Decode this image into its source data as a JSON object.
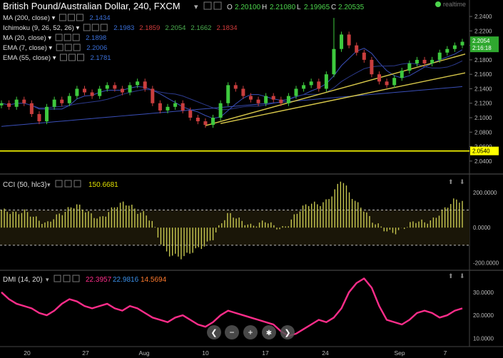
{
  "header": {
    "title": "British Pound/Australian Dollar, 240, FXCM",
    "ohlc": [
      {
        "label": "O",
        "value": "2.20100"
      },
      {
        "label": "H",
        "value": "2.21080"
      },
      {
        "label": "L",
        "value": "2.19965"
      },
      {
        "label": "C",
        "value": "2.20535"
      }
    ],
    "realtime_label": "realtime"
  },
  "indicators": [
    {
      "label": "MA (200, close)",
      "values": [
        {
          "v": "2.1434",
          "color": "#3a6fd8"
        }
      ]
    },
    {
      "label": "Ichimoku (9, 26, 52, 26)",
      "values": [
        {
          "v": "2.1983",
          "color": "#3a6fd8"
        },
        {
          "v": "2.1859",
          "color": "#d23c3c"
        },
        {
          "v": "2.2054",
          "color": "#4caf50"
        },
        {
          "v": "2.1662",
          "color": "#4caf50"
        },
        {
          "v": "2.1834",
          "color": "#d23c3c"
        }
      ]
    },
    {
      "label": "MA (20, close)",
      "values": [
        {
          "v": "2.1898",
          "color": "#3a6fd8"
        }
      ]
    },
    {
      "label": "EMA (7, close)",
      "values": [
        {
          "v": "2.2006",
          "color": "#3a6fd8"
        }
      ]
    },
    {
      "label": "EMA (55, close)",
      "values": [
        {
          "v": "2.1781",
          "color": "#3a6fd8"
        }
      ]
    }
  ],
  "price_axis": {
    "ticks": [
      "2.2400",
      "2.2200",
      "2.2000",
      "2.1800",
      "2.1600",
      "2.1400",
      "2.1200",
      "2.1000",
      "2.0800",
      "2.0600",
      "2.0400"
    ],
    "last_price": "2.2054",
    "countdown": "2:16:18",
    "level_label": "2.0540"
  },
  "cci": {
    "label": "CCI (50, hlc3)",
    "value": "150.6681",
    "ticks": [
      "200.0000",
      "0.0000",
      "-200.0000"
    ]
  },
  "dmi": {
    "label": "DMI (14, 20)",
    "values": [
      {
        "v": "22.3957",
        "color": "#ff2d8a"
      },
      {
        "v": "22.9816",
        "color": "#3a8fe8"
      },
      {
        "v": "14.5694",
        "color": "#ff7a2d"
      }
    ],
    "ticks": [
      "30.0000",
      "20.0000",
      "10.0000"
    ]
  },
  "x_axis": {
    "ticks": [
      "20",
      "27",
      "Aug",
      "10",
      "17",
      "24",
      "Sep",
      "7"
    ]
  },
  "colors": {
    "up": "#3ec93e",
    "down": "#c93e3e",
    "trend": "#d8c84a",
    "level": "#ffff00",
    "cci": "#c8c850",
    "dmi": "#ff2d8a",
    "ma": "#3a4fb8"
  },
  "chart_data": [
    {
      "type": "candlestick",
      "title": "British Pound/Australian Dollar, 240, FXCM",
      "ylim": [
        2.03,
        2.245
      ],
      "x_ticks": [
        "20",
        "27",
        "Aug",
        "10",
        "17",
        "24",
        "Sep",
        "7"
      ],
      "series": [
        {
          "name": "price (close, approx.)",
          "values": [
            2.12,
            2.115,
            2.125,
            2.12,
            2.105,
            2.095,
            2.115,
            2.125,
            2.12,
            2.13,
            2.14,
            2.135,
            2.13,
            2.14,
            2.145,
            2.14,
            2.135,
            2.145,
            2.15,
            2.14,
            2.12,
            2.11,
            2.115,
            2.12,
            2.11,
            2.1,
            2.095,
            2.09,
            2.1,
            2.12,
            2.145,
            2.14,
            2.13,
            2.125,
            2.12,
            2.13,
            2.125,
            2.12,
            2.13,
            2.14,
            2.145,
            2.15,
            2.14,
            2.16,
            2.195,
            2.215,
            2.2,
            2.19,
            2.18,
            2.16,
            2.15,
            2.145,
            2.155,
            2.165,
            2.175,
            2.18,
            2.175,
            2.18,
            2.19,
            2.195,
            2.2,
            2.205
          ]
        }
      ],
      "horizontal_level": 2.054,
      "last_price": 2.2054
    },
    {
      "type": "bar",
      "title": "CCI (50, hlc3)",
      "ylim": [
        -230,
        280
      ],
      "levels": [
        100,
        -100
      ],
      "series": [
        {
          "name": "CCI",
          "values": [
            100,
            90,
            80,
            95,
            70,
            40,
            20,
            60,
            80,
            110,
            130,
            100,
            70,
            50,
            80,
            120,
            140,
            130,
            90,
            80,
            30,
            -80,
            -150,
            -160,
            -170,
            -140,
            -120,
            -100,
            -60,
            20,
            80,
            60,
            30,
            10,
            20,
            40,
            10,
            -10,
            20,
            80,
            120,
            140,
            130,
            150,
            200,
            280,
            200,
            140,
            100,
            40,
            10,
            -20,
            -30,
            -10,
            20,
            40,
            30,
            40,
            80,
            120,
            160,
            150
          ]
        }
      ]
    },
    {
      "type": "line",
      "title": "DMI (14, 20)",
      "ylim": [
        7,
        38
      ],
      "series": [
        {
          "name": "DMI",
          "values": [
            30,
            27,
            25,
            24,
            23,
            21,
            20,
            22,
            25,
            27,
            26,
            24,
            23,
            24,
            25,
            23,
            22,
            24,
            23,
            21,
            19,
            18,
            17,
            19,
            20,
            18,
            16,
            15,
            17,
            20,
            22,
            21,
            20,
            19,
            18,
            17,
            16,
            13,
            11,
            12,
            14,
            16,
            18,
            17,
            19,
            23,
            30,
            34,
            36,
            32,
            24,
            18,
            17,
            16,
            18,
            21,
            22,
            21,
            19,
            20,
            22,
            23
          ]
        }
      ]
    }
  ]
}
